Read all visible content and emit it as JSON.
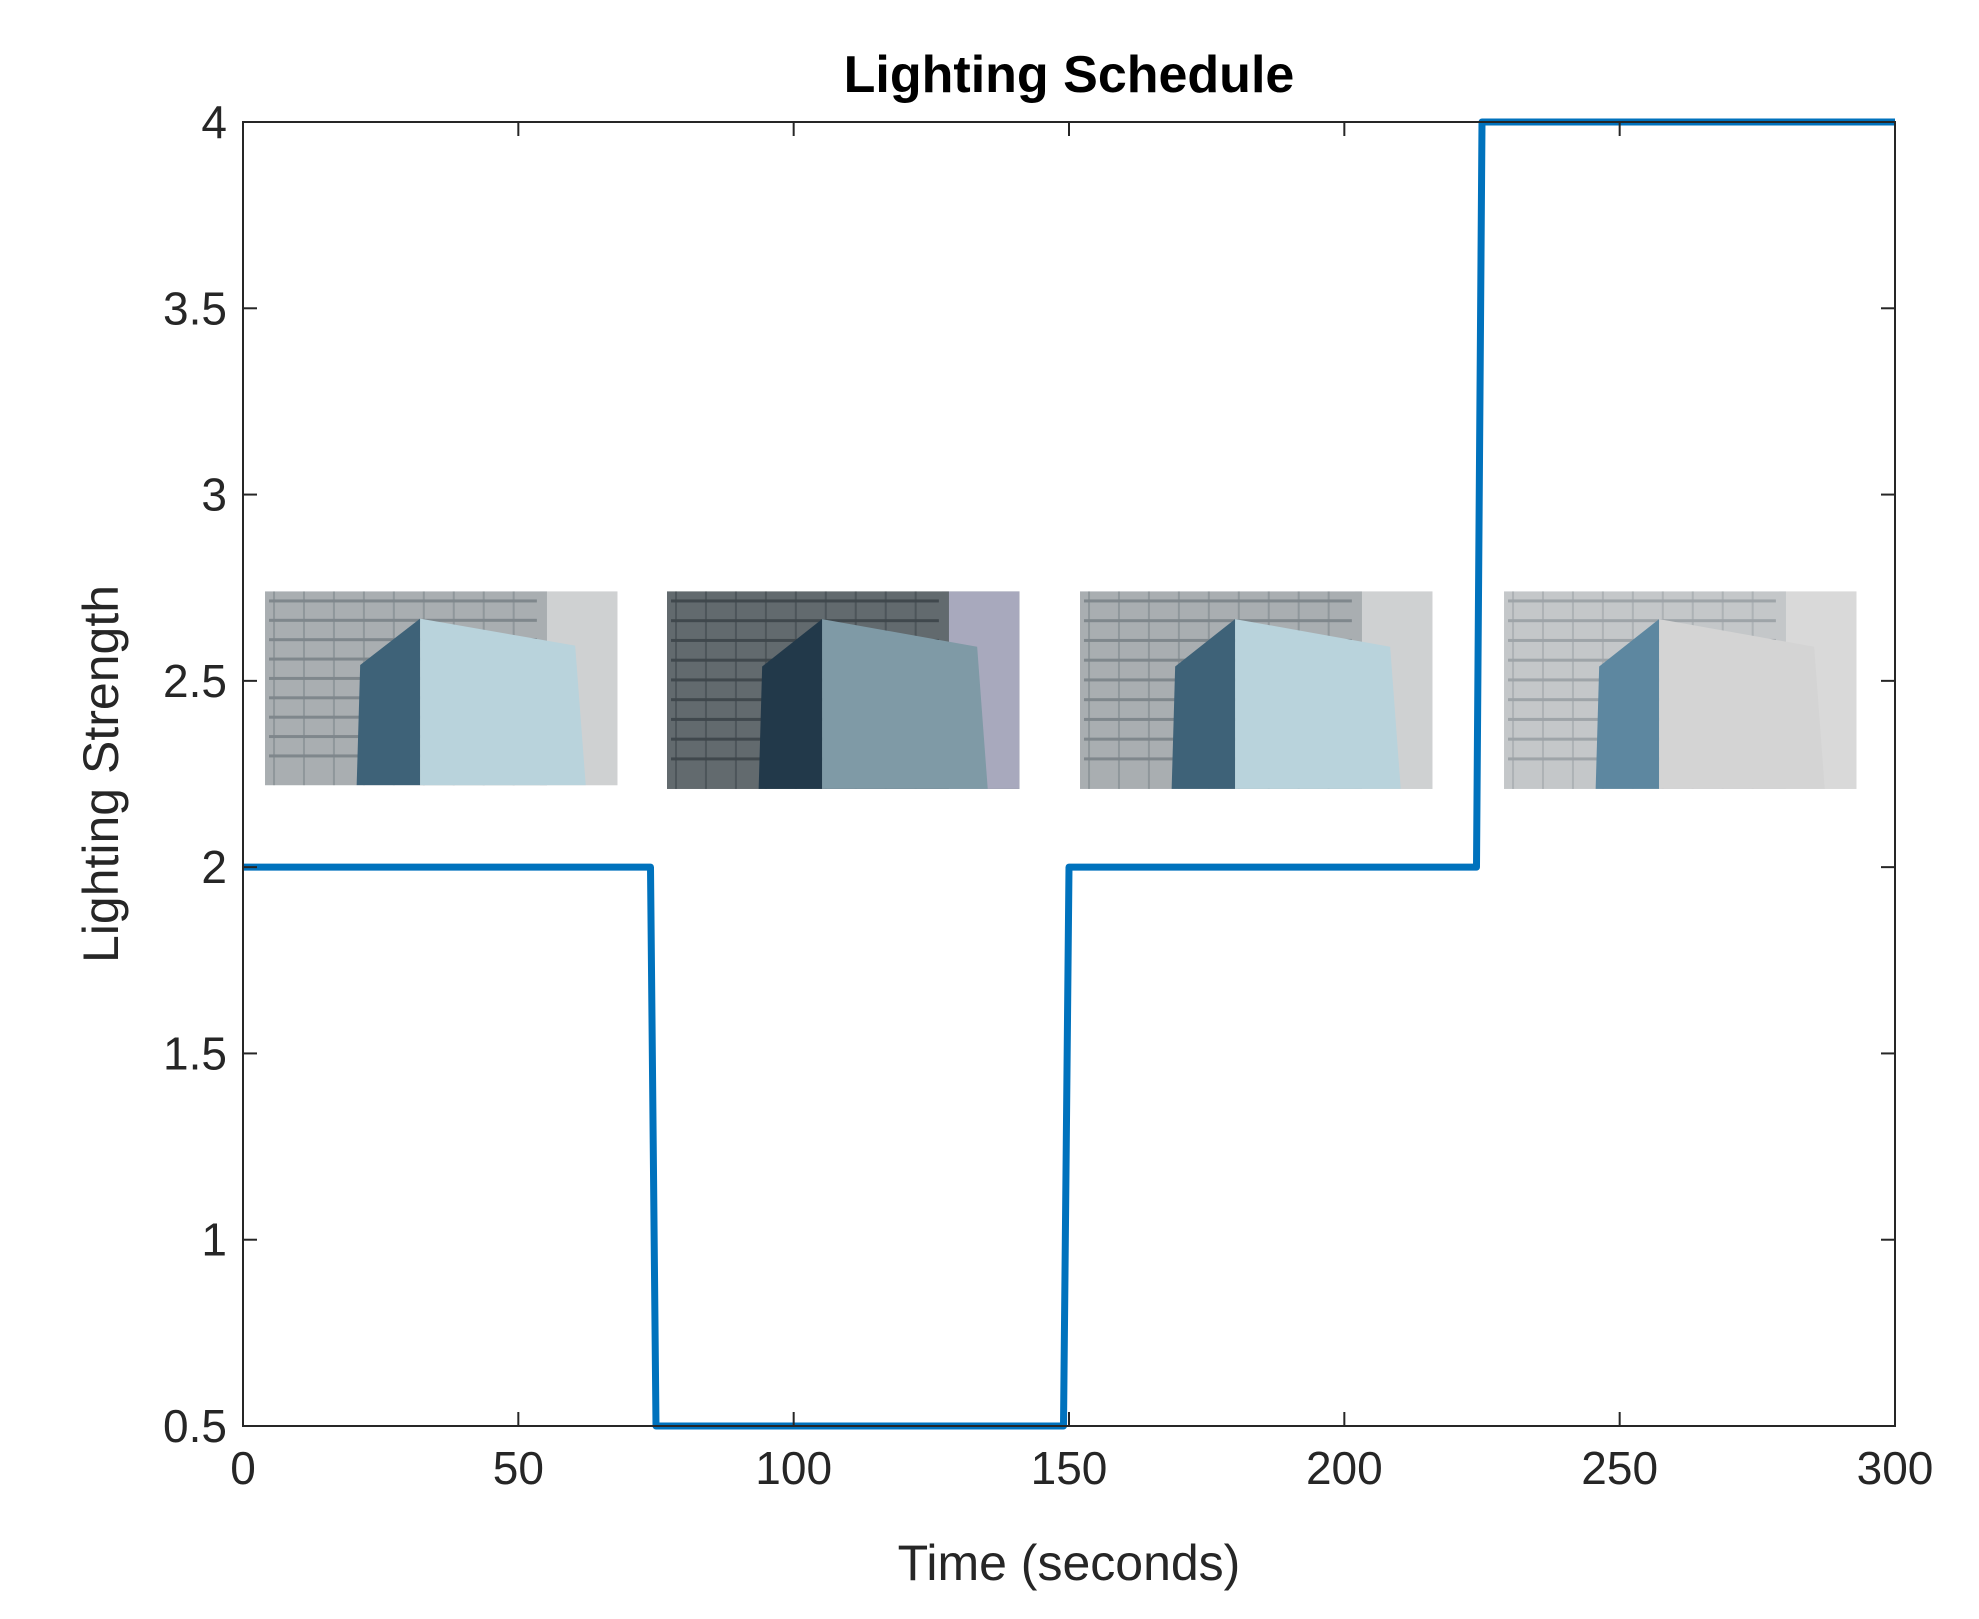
{
  "chart_data": {
    "type": "line",
    "title": "Lighting Schedule",
    "xlabel": "Time (seconds)",
    "ylabel": "Lighting Strength",
    "xlim": [
      0,
      300
    ],
    "ylim": [
      0.5,
      4
    ],
    "xticks": [
      "0",
      "50",
      "100",
      "150",
      "200",
      "250",
      "300"
    ],
    "yticks": [
      "0.5",
      "1",
      "1.5",
      "2",
      "2.5",
      "3",
      "3.5",
      "4"
    ],
    "grid": false,
    "legend": "none",
    "series": [
      {
        "color": "#0072BD",
        "x": [
          0,
          74,
          75,
          149,
          150,
          224,
          225,
          300
        ],
        "y": [
          2,
          2,
          0.5,
          0.5,
          2,
          2,
          4,
          4
        ]
      }
    ],
    "insets": [
      {
        "label": "building-photo",
        "x_start": 4,
        "x_end": 68,
        "y_top": 2.74,
        "y_bottom": 2.22,
        "tone": "normal"
      },
      {
        "label": "building-photo",
        "x_start": 77,
        "x_end": 141,
        "y_top": 2.74,
        "y_bottom": 2.21,
        "tone": "dark"
      },
      {
        "label": "building-photo",
        "x_start": 152,
        "x_end": 216,
        "y_top": 2.74,
        "y_bottom": 2.21,
        "tone": "normal"
      },
      {
        "label": "building-photo",
        "x_start": 229,
        "x_end": 293,
        "y_top": 2.74,
        "y_bottom": 2.21,
        "tone": "bright"
      }
    ]
  }
}
